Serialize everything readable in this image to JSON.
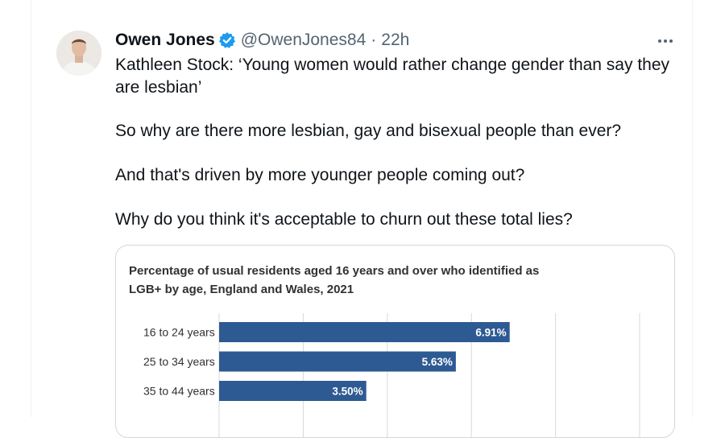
{
  "tweet": {
    "author": {
      "name": "Owen Jones",
      "handle": "@OwenJones84",
      "verified": true,
      "time": "22h"
    },
    "separator": "·",
    "lines": [
      "Kathleen Stock: ‘Young women would rather change gender than say they",
      "are lesbian’",
      "So why are there more lesbian, gay and bisexual people than ever?",
      "And that's driven by more younger people coming out?",
      "Why do you think it's acceptable to churn out these total lies?"
    ]
  },
  "colors": {
    "bar": "#2e5a93",
    "verified": "#1d9bf0",
    "grid": "#d9d9d9"
  },
  "chart_data": {
    "type": "bar",
    "orientation": "horizontal",
    "title_lines": [
      "Percentage of usual residents aged 16 years and over who identified as",
      "LGB+ by age, England and Wales, 2021"
    ],
    "categories": [
      "16 to 24 years",
      "25 to 34 years",
      "35 to 44 years"
    ],
    "values": [
      6.91,
      5.63,
      3.5
    ],
    "data_labels": [
      "6.91%",
      "5.63%",
      "3.50%"
    ],
    "xlim": [
      0,
      10
    ],
    "grid": true
  }
}
